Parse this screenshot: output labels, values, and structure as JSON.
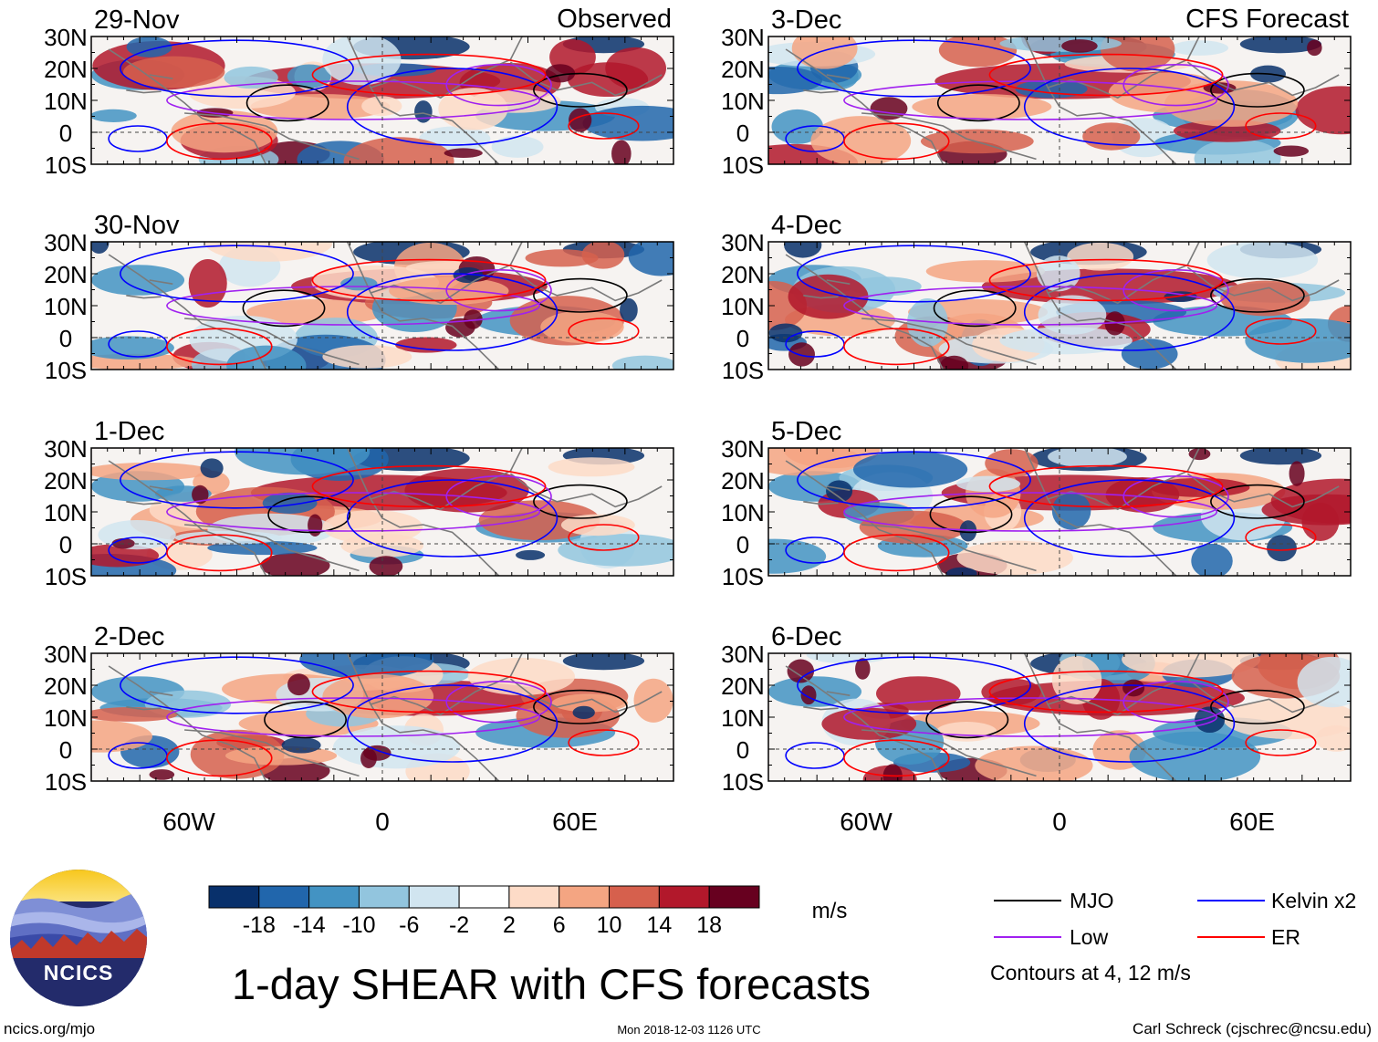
{
  "colors": {
    "mjo": "#000000",
    "low": "#a020f0",
    "kelvin": "#0000ff",
    "er": "#ff0000",
    "coast": "#7a7a7a"
  },
  "columns": [
    {
      "heading": "Observed"
    },
    {
      "heading": "CFS Forecast"
    }
  ],
  "panels": [
    {
      "date": "29-Nov",
      "seed": 3
    },
    {
      "date": "30-Nov",
      "seed": 11
    },
    {
      "date": "1-Dec",
      "seed": 19
    },
    {
      "date": "2-Dec",
      "seed": 27
    },
    {
      "date": "3-Dec",
      "seed": 35
    },
    {
      "date": "4-Dec",
      "seed": 43
    },
    {
      "date": "5-Dec",
      "seed": 51
    },
    {
      "date": "6-Dec",
      "seed": 59
    }
  ],
  "lat_labels": [
    "30N",
    "20N",
    "10N",
    "0",
    "10S"
  ],
  "lon_labels": [
    "60W",
    "0",
    "60E"
  ],
  "colorbar": {
    "colors": [
      "#08306b",
      "#2166ac",
      "#4393c3",
      "#92c5de",
      "#d1e5f0",
      "#ffffff",
      "#fddbc7",
      "#f4a582",
      "#d6604d",
      "#b2182b",
      "#67001f"
    ],
    "tick_labels": [
      "-18",
      "-14",
      "-10",
      "-6",
      "-2",
      "2",
      "6",
      "10",
      "14",
      "18"
    ],
    "units": "m/s"
  },
  "legend": {
    "items": [
      {
        "label": "MJO",
        "color": "#000000"
      },
      {
        "label": "Kelvin x2",
        "color": "#0000ff"
      },
      {
        "label": "Low",
        "color": "#a020f0"
      },
      {
        "label": "ER",
        "color": "#ff0000"
      }
    ],
    "note": "Contours at 4, 12 m/s"
  },
  "logo": {
    "text": "NCICS"
  },
  "title": "1-day SHEAR with CFS forecasts",
  "footer": {
    "url": "ncics.org/mjo",
    "timestamp": "Mon 2018-12-03 1126 UTC",
    "credit": "Carl Schreck (cjschrec@ncsu.edu)"
  }
}
